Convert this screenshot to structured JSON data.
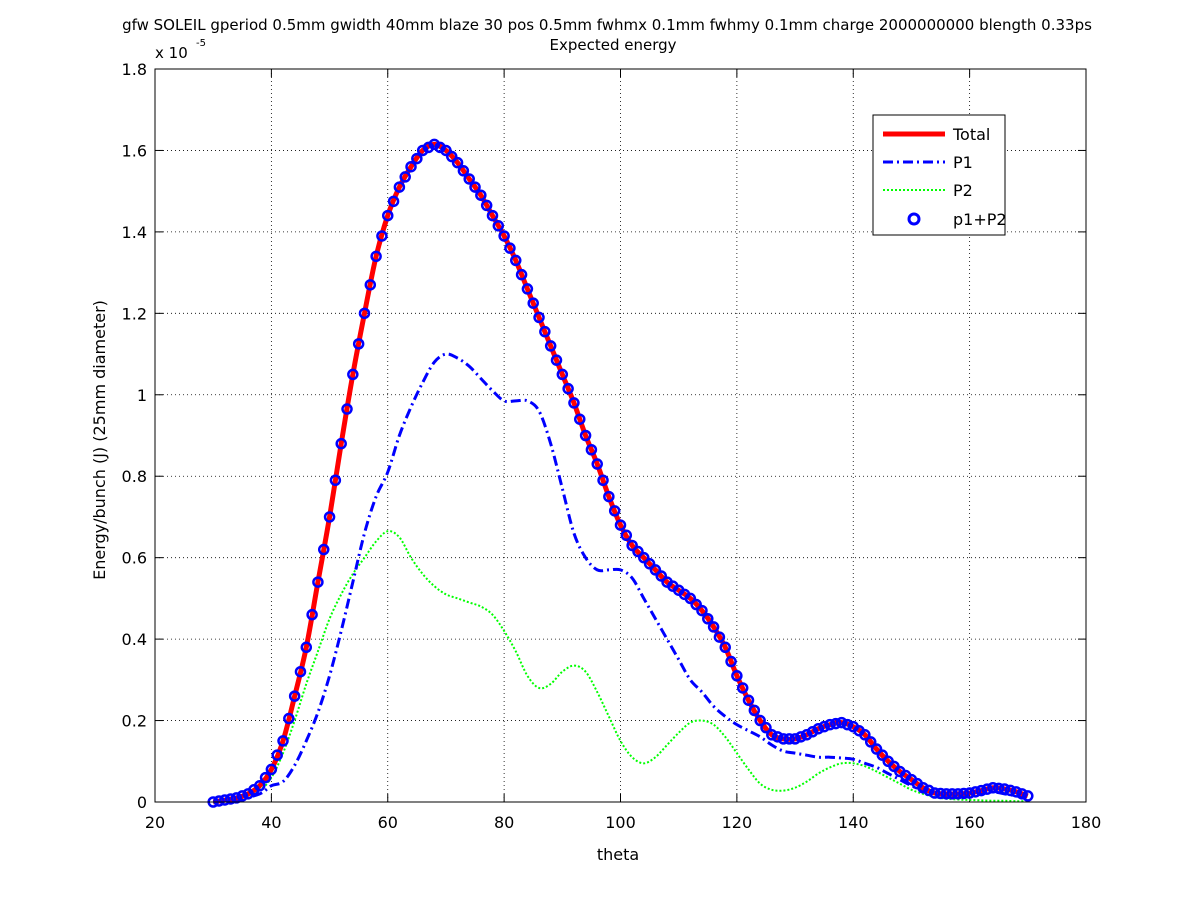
{
  "chart_data": {
    "type": "line",
    "title_line1": "gfw SOLEIL gperiod 0.5mm gwidth 40mm blaze 30 pos 0.5mm fwhmx 0.1mm fwhmy 0.1mm charge 2000000000 blength 0.33ps",
    "title_line2": "Expected energy",
    "xlabel": "theta",
    "ylabel": "Energy/bunch (J) (25mm diameter)",
    "y_exponent_label": "x 10",
    "y_exponent_power": "-5",
    "xlim": [
      20,
      180
    ],
    "ylim": [
      0,
      1.8
    ],
    "xticks": [
      20,
      40,
      60,
      80,
      100,
      120,
      140,
      160,
      180
    ],
    "yticks": [
      0,
      0.2,
      0.4,
      0.6,
      0.8,
      1,
      1.2,
      1.4,
      1.6,
      1.8
    ],
    "xtick_labels": [
      "20",
      "40",
      "60",
      "80",
      "100",
      "120",
      "140",
      "160",
      "180"
    ],
    "ytick_labels": [
      "0",
      "0.2",
      "0.4",
      "0.6",
      "0.8",
      "1",
      "1.2",
      "1.4",
      "1.6",
      "1.8"
    ],
    "grid": true,
    "legend_position": "top-right",
    "series": [
      {
        "name": "Total",
        "style": "solid",
        "color": "#ff0000",
        "points": [
          [
            30,
            0
          ],
          [
            34,
            0.01
          ],
          [
            36,
            0.02
          ],
          [
            38,
            0.04
          ],
          [
            40,
            0.08
          ],
          [
            42,
            0.15
          ],
          [
            44,
            0.26
          ],
          [
            46,
            0.38
          ],
          [
            48,
            0.54
          ],
          [
            50,
            0.7
          ],
          [
            52,
            0.88
          ],
          [
            54,
            1.05
          ],
          [
            56,
            1.2
          ],
          [
            58,
            1.34
          ],
          [
            60,
            1.44
          ],
          [
            62,
            1.51
          ],
          [
            64,
            1.56
          ],
          [
            66,
            1.6
          ],
          [
            68,
            1.615
          ],
          [
            70,
            1.6
          ],
          [
            72,
            1.57
          ],
          [
            74,
            1.53
          ],
          [
            76,
            1.49
          ],
          [
            78,
            1.44
          ],
          [
            80,
            1.39
          ],
          [
            82,
            1.33
          ],
          [
            84,
            1.26
          ],
          [
            86,
            1.19
          ],
          [
            88,
            1.12
          ],
          [
            90,
            1.05
          ],
          [
            92,
            0.98
          ],
          [
            94,
            0.9
          ],
          [
            96,
            0.83
          ],
          [
            98,
            0.75
          ],
          [
            100,
            0.68
          ],
          [
            102,
            0.63
          ],
          [
            104,
            0.6
          ],
          [
            106,
            0.57
          ],
          [
            108,
            0.54
          ],
          [
            110,
            0.52
          ],
          [
            112,
            0.5
          ],
          [
            114,
            0.47
          ],
          [
            116,
            0.43
          ],
          [
            118,
            0.38
          ],
          [
            120,
            0.31
          ],
          [
            122,
            0.25
          ],
          [
            124,
            0.2
          ],
          [
            126,
            0.165
          ],
          [
            128,
            0.155
          ],
          [
            130,
            0.155
          ],
          [
            132,
            0.165
          ],
          [
            134,
            0.18
          ],
          [
            136,
            0.19
          ],
          [
            138,
            0.195
          ],
          [
            140,
            0.185
          ],
          [
            142,
            0.165
          ],
          [
            144,
            0.13
          ],
          [
            146,
            0.1
          ],
          [
            148,
            0.075
          ],
          [
            150,
            0.055
          ],
          [
            152,
            0.035
          ],
          [
            154,
            0.022
          ],
          [
            156,
            0.02
          ],
          [
            158,
            0.02
          ],
          [
            160,
            0.022
          ],
          [
            162,
            0.028
          ],
          [
            164,
            0.035
          ],
          [
            166,
            0.032
          ],
          [
            168,
            0.025
          ],
          [
            170,
            0.015
          ]
        ]
      },
      {
        "name": "P1",
        "style": "dashdot",
        "color": "#0000ff",
        "points": [
          [
            30,
            0
          ],
          [
            34,
            0.005
          ],
          [
            38,
            0.02
          ],
          [
            40,
            0.04
          ],
          [
            42,
            0.05
          ],
          [
            44,
            0.09
          ],
          [
            46,
            0.15
          ],
          [
            48,
            0.22
          ],
          [
            50,
            0.31
          ],
          [
            52,
            0.42
          ],
          [
            54,
            0.54
          ],
          [
            56,
            0.66
          ],
          [
            58,
            0.75
          ],
          [
            60,
            0.81
          ],
          [
            62,
            0.9
          ],
          [
            64,
            0.97
          ],
          [
            66,
            1.03
          ],
          [
            68,
            1.08
          ],
          [
            70,
            1.1
          ],
          [
            72,
            1.09
          ],
          [
            74,
            1.07
          ],
          [
            76,
            1.04
          ],
          [
            78,
            1.01
          ],
          [
            80,
            0.985
          ],
          [
            82,
            0.985
          ],
          [
            84,
            0.985
          ],
          [
            86,
            0.96
          ],
          [
            88,
            0.88
          ],
          [
            90,
            0.77
          ],
          [
            92,
            0.66
          ],
          [
            94,
            0.6
          ],
          [
            96,
            0.57
          ],
          [
            98,
            0.57
          ],
          [
            100,
            0.57
          ],
          [
            102,
            0.55
          ],
          [
            104,
            0.5
          ],
          [
            106,
            0.45
          ],
          [
            108,
            0.4
          ],
          [
            110,
            0.35
          ],
          [
            112,
            0.3
          ],
          [
            114,
            0.27
          ],
          [
            116,
            0.235
          ],
          [
            118,
            0.21
          ],
          [
            120,
            0.19
          ],
          [
            122,
            0.175
          ],
          [
            124,
            0.16
          ],
          [
            126,
            0.14
          ],
          [
            128,
            0.125
          ],
          [
            130,
            0.12
          ],
          [
            132,
            0.115
          ],
          [
            134,
            0.11
          ],
          [
            136,
            0.11
          ],
          [
            138,
            0.108
          ],
          [
            140,
            0.105
          ],
          [
            142,
            0.095
          ],
          [
            144,
            0.085
          ],
          [
            146,
            0.07
          ],
          [
            148,
            0.055
          ],
          [
            150,
            0.04
          ],
          [
            152,
            0.028
          ],
          [
            154,
            0.02
          ],
          [
            156,
            0.015
          ],
          [
            158,
            0.015
          ],
          [
            160,
            0.018
          ],
          [
            162,
            0.022
          ],
          [
            164,
            0.025
          ],
          [
            166,
            0.02
          ],
          [
            168,
            0.015
          ],
          [
            170,
            0.01
          ]
        ]
      },
      {
        "name": "P2",
        "style": "dotted",
        "color": "#00ff00",
        "points": [
          [
            30,
            0
          ],
          [
            34,
            0.005
          ],
          [
            38,
            0.03
          ],
          [
            40,
            0.06
          ],
          [
            42,
            0.12
          ],
          [
            44,
            0.2
          ],
          [
            46,
            0.29
          ],
          [
            48,
            0.37
          ],
          [
            50,
            0.45
          ],
          [
            52,
            0.51
          ],
          [
            54,
            0.56
          ],
          [
            56,
            0.6
          ],
          [
            58,
            0.64
          ],
          [
            60,
            0.665
          ],
          [
            62,
            0.65
          ],
          [
            64,
            0.6
          ],
          [
            66,
            0.56
          ],
          [
            68,
            0.53
          ],
          [
            70,
            0.51
          ],
          [
            72,
            0.5
          ],
          [
            74,
            0.49
          ],
          [
            76,
            0.48
          ],
          [
            78,
            0.46
          ],
          [
            80,
            0.42
          ],
          [
            82,
            0.37
          ],
          [
            84,
            0.31
          ],
          [
            86,
            0.28
          ],
          [
            88,
            0.29
          ],
          [
            90,
            0.32
          ],
          [
            92,
            0.335
          ],
          [
            94,
            0.32
          ],
          [
            96,
            0.27
          ],
          [
            98,
            0.21
          ],
          [
            100,
            0.15
          ],
          [
            102,
            0.11
          ],
          [
            104,
            0.095
          ],
          [
            106,
            0.11
          ],
          [
            108,
            0.14
          ],
          [
            110,
            0.17
          ],
          [
            112,
            0.195
          ],
          [
            114,
            0.2
          ],
          [
            116,
            0.19
          ],
          [
            118,
            0.16
          ],
          [
            120,
            0.12
          ],
          [
            122,
            0.08
          ],
          [
            124,
            0.045
          ],
          [
            126,
            0.03
          ],
          [
            128,
            0.028
          ],
          [
            130,
            0.035
          ],
          [
            132,
            0.05
          ],
          [
            134,
            0.07
          ],
          [
            136,
            0.085
          ],
          [
            138,
            0.095
          ],
          [
            140,
            0.095
          ],
          [
            142,
            0.088
          ],
          [
            144,
            0.075
          ],
          [
            146,
            0.06
          ],
          [
            148,
            0.045
          ],
          [
            150,
            0.03
          ],
          [
            152,
            0.02
          ],
          [
            154,
            0.012
          ],
          [
            156,
            0.008
          ],
          [
            158,
            0.006
          ],
          [
            160,
            0.005
          ],
          [
            162,
            0.004
          ],
          [
            164,
            0.003
          ],
          [
            166,
            0.003
          ],
          [
            168,
            0.002
          ],
          [
            170,
            0.002
          ]
        ]
      },
      {
        "name": "p1+P2",
        "style": "circles",
        "color": "#0000ff",
        "marker_step": 1.0
      }
    ]
  }
}
